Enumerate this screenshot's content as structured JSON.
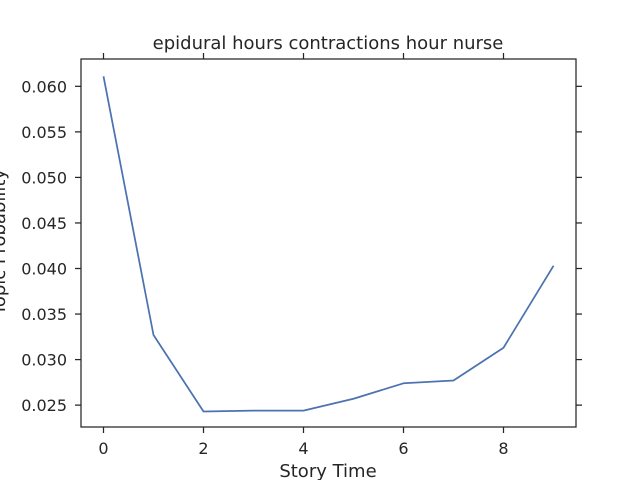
{
  "chart_data": {
    "type": "line",
    "title": "epidural hours contractions hour nurse",
    "xlabel": "Story Time",
    "ylabel": "Topic Probability",
    "xlim": [
      -0.45,
      9.45
    ],
    "ylim": [
      0.0226,
      0.063
    ],
    "xticks": [
      0,
      2,
      4,
      6,
      8
    ],
    "xtick_labels": [
      "0",
      "2",
      "4",
      "6",
      "8"
    ],
    "yticks": [
      0.025,
      0.03,
      0.035,
      0.04,
      0.045,
      0.05,
      0.055,
      0.06
    ],
    "ytick_labels": [
      "0.025",
      "0.030",
      "0.035",
      "0.040",
      "0.045",
      "0.050",
      "0.055",
      "0.060"
    ],
    "grid": false,
    "series": [
      {
        "color": "#4c72b0",
        "x": [
          0,
          1,
          2,
          3,
          4,
          5,
          6,
          7,
          8,
          9
        ],
        "y": [
          0.0611,
          0.0327,
          0.0243,
          0.0244,
          0.0244,
          0.0257,
          0.0274,
          0.0277,
          0.0313,
          0.0403
        ]
      }
    ]
  }
}
